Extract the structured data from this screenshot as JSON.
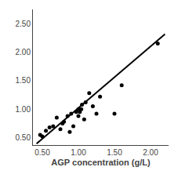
{
  "chart_data": {
    "type": "scatter",
    "xlabel": "AGP concentration (g/L)",
    "xlim": [
      0.37,
      2.25
    ],
    "ylim": [
      0.37,
      2.75
    ],
    "xticks": [
      {
        "value": 0.5,
        "label": "0.50"
      },
      {
        "value": 1.0,
        "label": "1.00"
      },
      {
        "value": 1.5,
        "label": "1.50"
      },
      {
        "value": 2.0,
        "label": "2.00"
      }
    ],
    "yticks": [
      {
        "value": 0.5,
        "label": "0.50"
      },
      {
        "value": 1.0,
        "label": "1.00"
      },
      {
        "value": 1.5,
        "label": "1.50"
      },
      {
        "value": 2.0,
        "label": "2.00"
      },
      {
        "value": 2.5,
        "label": "2.50"
      }
    ],
    "grid": false,
    "series": [
      {
        "type": "scatter",
        "color": "#000000",
        "x": [
          0.47,
          0.5,
          0.55,
          0.6,
          0.65,
          0.7,
          0.75,
          0.78,
          0.8,
          0.85,
          0.88,
          0.9,
          0.93,
          0.97,
          1.0,
          1.0,
          1.02,
          1.04,
          1.05,
          1.08,
          1.1,
          1.15,
          1.2,
          1.25,
          1.3,
          1.5,
          1.6,
          2.1
        ],
        "values": [
          0.55,
          0.52,
          0.62,
          0.68,
          0.7,
          0.85,
          0.65,
          0.75,
          0.78,
          0.88,
          0.6,
          0.92,
          0.7,
          0.95,
          1.0,
          0.88,
          0.95,
          1.0,
          1.08,
          0.82,
          1.12,
          1.28,
          1.05,
          0.92,
          1.22,
          0.92,
          1.42,
          2.15
        ]
      },
      {
        "type": "line",
        "color": "#000000",
        "x": [
          0.42,
          2.2
        ],
        "values": [
          0.3936,
          2.316
        ]
      }
    ]
  }
}
